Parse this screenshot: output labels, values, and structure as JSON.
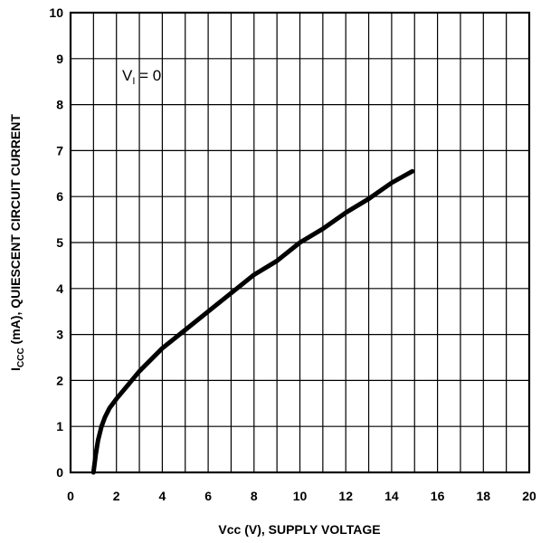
{
  "chart_data": {
    "type": "line",
    "xlabel": "Vcc (V), SUPPLY VOLTAGE",
    "ylabel": {
      "prefix": "I",
      "subscript": "CCC",
      "rest": " (mA), QUIESCENT CIRCUIT CURRENT"
    },
    "annotation": {
      "main": "V",
      "subscript": "I",
      "rest": " = 0"
    },
    "xlim": [
      0,
      20
    ],
    "ylim": [
      0,
      10
    ],
    "xticks": [
      0,
      2,
      4,
      6,
      8,
      10,
      12,
      14,
      16,
      18,
      20
    ],
    "yticks": [
      0,
      1,
      2,
      3,
      4,
      5,
      6,
      7,
      8,
      9,
      10
    ],
    "grid": true,
    "series": [
      {
        "x": [
          1.0,
          1.1,
          1.2,
          1.35,
          1.5,
          1.7,
          2.0,
          2.5,
          3.0,
          4.0,
          5.0,
          6.0,
          7.0,
          8.0,
          9.0,
          10.0,
          11.0,
          12.0,
          13.0,
          14.0,
          14.9
        ],
        "y": [
          0.0,
          0.4,
          0.7,
          1.0,
          1.2,
          1.4,
          1.6,
          1.9,
          2.2,
          2.7,
          3.1,
          3.5,
          3.9,
          4.3,
          4.6,
          5.0,
          5.3,
          5.65,
          5.95,
          6.3,
          6.55
        ]
      }
    ]
  }
}
